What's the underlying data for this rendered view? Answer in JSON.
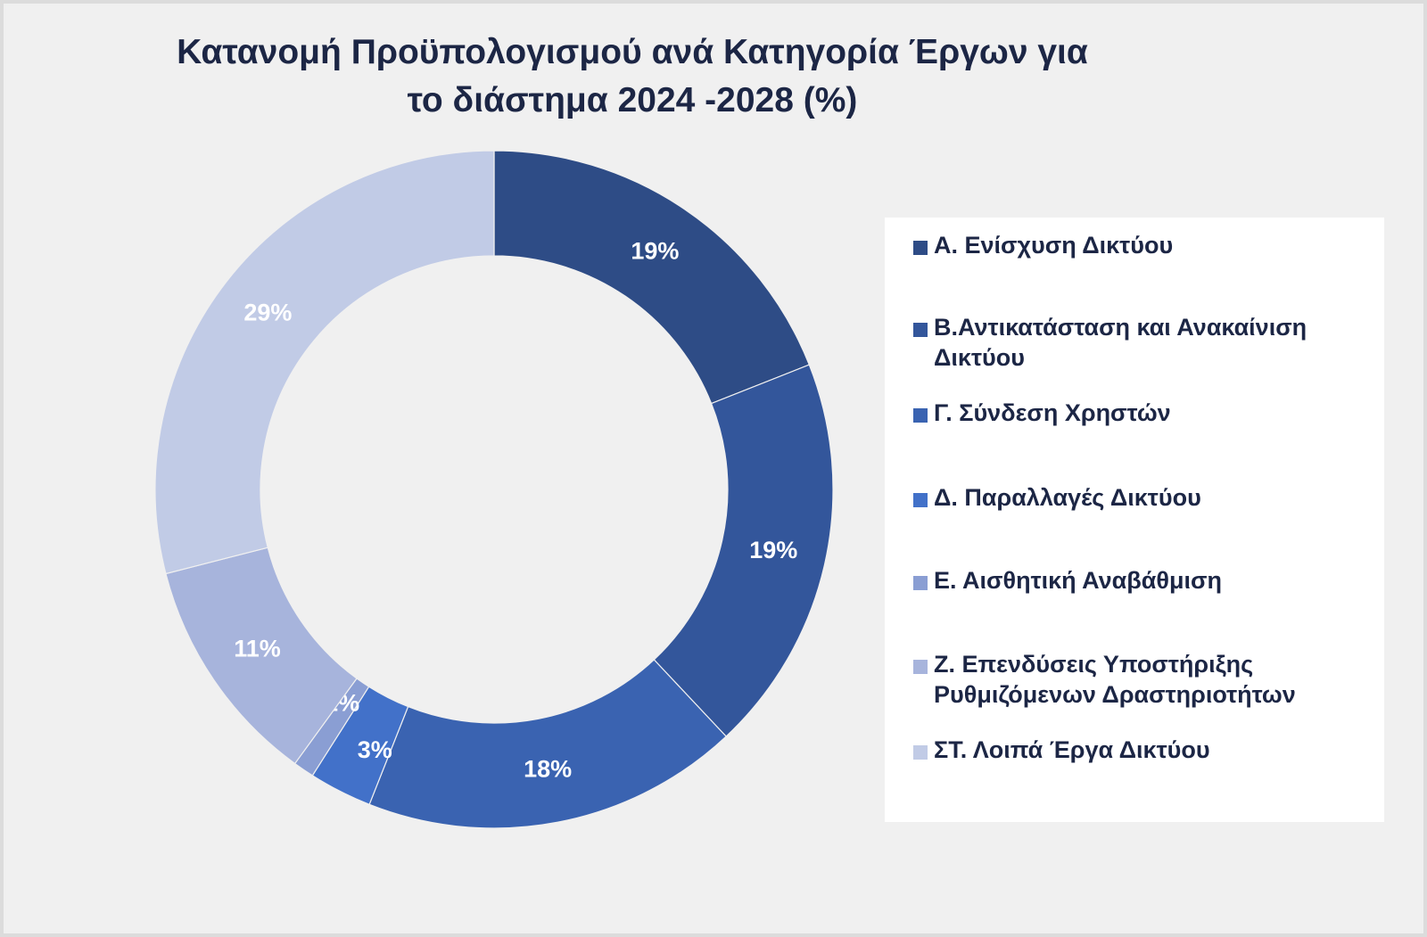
{
  "chart_data": {
    "type": "pie",
    "title": "Κατανομή Προϋπολογισμού ανά Κατηγορία Έργων για το διάστημα 2024 -2028 (%)",
    "title_lines": [
      "Κατανομή Προϋπολογισμού ανά Κατηγορία Έργων για",
      "το διάστημα 2024 -2028 (%)"
    ],
    "style": "donut",
    "unit": "%",
    "legend_position": "right",
    "slices": [
      {
        "name": "Α. Ενίσχυση Δικτύου",
        "value": 19,
        "label": "19%",
        "color": "#2e4c86"
      },
      {
        "name": "Β.Αντικατάσταση και Ανακαίνιση Δικτύου",
        "value": 19,
        "label": "19%",
        "color": "#33569b"
      },
      {
        "name": "Γ. Σύνδεση Χρηστών",
        "value": 18,
        "label": "18%",
        "color": "#3a63b1"
      },
      {
        "name": "Δ. Παραλλαγές Δικτύου",
        "value": 3,
        "label": "3%",
        "color": "#4271c9"
      },
      {
        "name": "Ε. Αισθητική Αναβάθμιση",
        "value": 1,
        "label": "1%",
        "color": "#8a9ed3"
      },
      {
        "name": "Ζ. Επενδύσεις Υποστήριξης Ρυθμιζόμενων Δραστηριοτήτων",
        "value": 11,
        "label": "11%",
        "color": "#a7b4dc"
      },
      {
        "name": "ΣΤ. Λοιπά Έργα Δικτύου",
        "value": 29,
        "label": "29%",
        "color": "#c1cbe6"
      }
    ]
  },
  "legend": {
    "items": [
      {
        "label": "Α. Ενίσχυση Δικτύου",
        "color": "#2e4c86"
      },
      {
        "label": "Β.Αντικατάσταση και Ανακαίνιση Δικτύου",
        "color": "#33569b"
      },
      {
        "label": "Γ. Σύνδεση Χρηστών",
        "color": "#3a63b1"
      },
      {
        "label": "Δ. Παραλλαγές Δικτύου",
        "color": "#4271c9"
      },
      {
        "label": "Ε. Αισθητική Αναβάθμιση",
        "color": "#8a9ed3"
      },
      {
        "label": "Ζ. Επενδύσεις Υποστήριξης Ρυθμιζόμενων Δραστηριοτήτων",
        "color": "#a7b4dc"
      },
      {
        "label": "ΣΤ. Λοιπά Έργα Δικτύου",
        "color": "#c1cbe6"
      }
    ]
  }
}
